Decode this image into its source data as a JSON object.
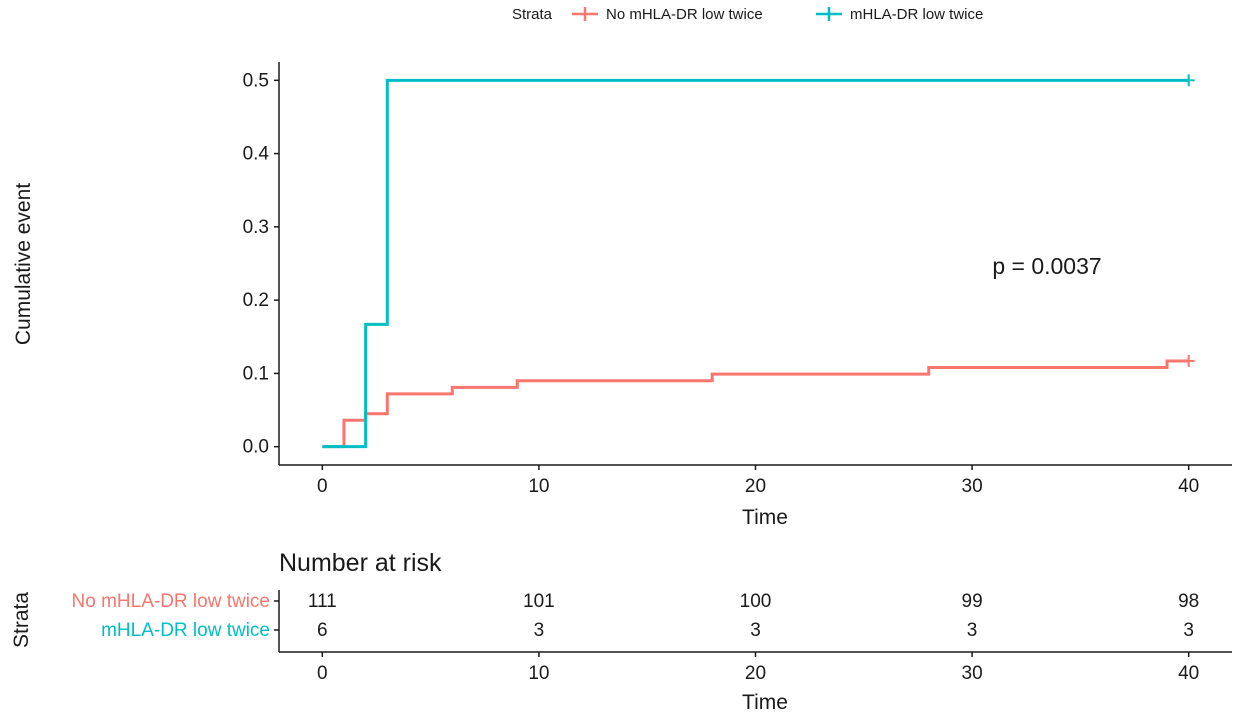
{
  "chart_data": [
    {
      "type": "line",
      "chart_kind": "step (cumulative incidence)",
      "xlabel": "Time",
      "ylabel": "Cumulative event",
      "xlim": [
        -2,
        42
      ],
      "ylim": [
        -0.025,
        0.525
      ],
      "x_ticks": [
        0,
        10,
        20,
        30,
        40
      ],
      "x_tick_labels": [
        "0",
        "10",
        "20",
        "30",
        "40"
      ],
      "y_ticks": [
        0.0,
        0.1,
        0.2,
        0.3,
        0.4,
        0.5
      ],
      "y_tick_labels": [
        "0.0",
        "0.1",
        "0.2",
        "0.3",
        "0.4",
        "0.5"
      ],
      "grid": false,
      "legend": {
        "title": "Strata",
        "position": "top",
        "entries": [
          "No mHLA-DR low twice",
          "mHLA-DR low twice"
        ]
      },
      "annotation": "p = 0.0037",
      "series": [
        {
          "name": "No mHLA-DR low twice",
          "color": "#F8766D",
          "x": [
            0,
            1,
            2,
            3,
            6,
            9,
            18,
            28,
            39,
            40
          ],
          "y": [
            0.0,
            0.036,
            0.045,
            0.072,
            0.081,
            0.09,
            0.099,
            0.108,
            0.117,
            0.117
          ],
          "censor_x": [
            40
          ],
          "censor_y": [
            0.117
          ]
        },
        {
          "name": "mHLA-DR low twice",
          "color": "#00BFC4",
          "x": [
            0,
            2,
            3,
            40
          ],
          "y": [
            0.0,
            0.167,
            0.5,
            0.5
          ],
          "censor_x": [
            40
          ],
          "censor_y": [
            0.5
          ]
        }
      ]
    },
    {
      "type": "table",
      "title": "Number at risk",
      "ylabel": "Strata",
      "xlabel": "Time",
      "x_ticks": [
        0,
        10,
        20,
        30,
        40
      ],
      "x_tick_labels": [
        "0",
        "10",
        "20",
        "30",
        "40"
      ],
      "rows": [
        {
          "label": "No mHLA-DR low twice",
          "color": "#F8766D",
          "values": [
            "111",
            "101",
            "100",
            "99",
            "98"
          ]
        },
        {
          "label": "mHLA-DR low twice",
          "color": "#00BFC4",
          "values": [
            "6",
            "3",
            "3",
            "3",
            "3"
          ]
        }
      ]
    }
  ]
}
